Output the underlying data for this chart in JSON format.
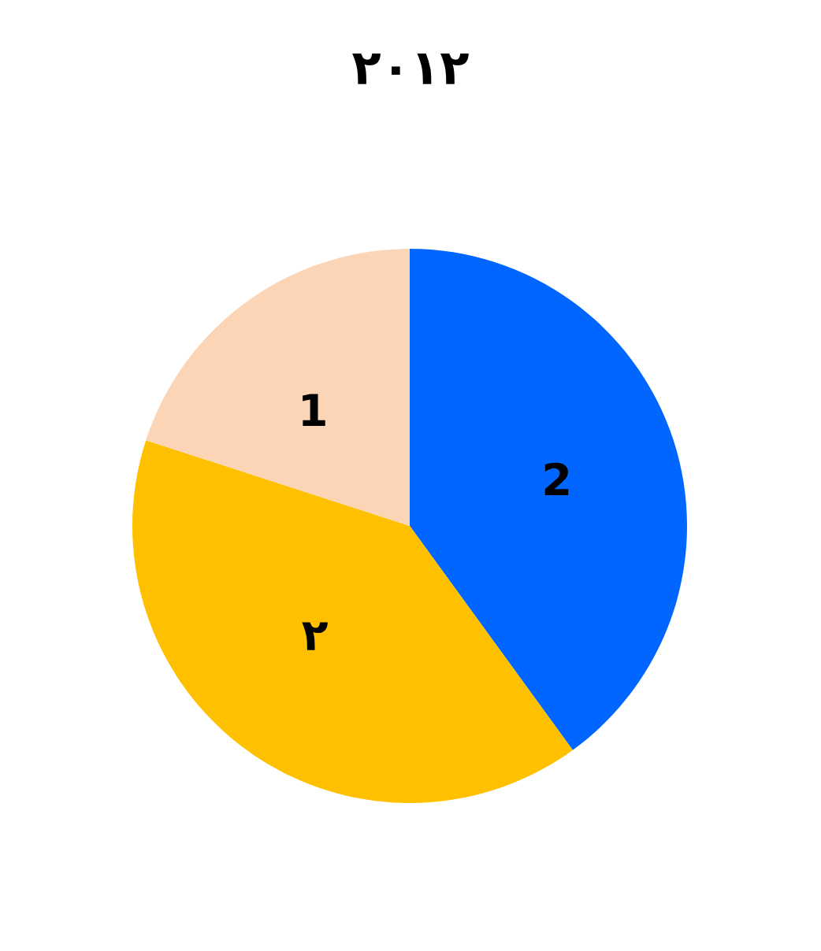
{
  "chart_data": {
    "type": "pie",
    "title": "٢٠١٢",
    "categories": [
      null,
      null,
      null
    ],
    "values": [
      2,
      2,
      1
    ],
    "value_labels": [
      "2",
      "٢",
      "1"
    ],
    "colors": [
      "#0066ff",
      "#ffc000",
      "#fbd5b5"
    ],
    "legend": false
  }
}
